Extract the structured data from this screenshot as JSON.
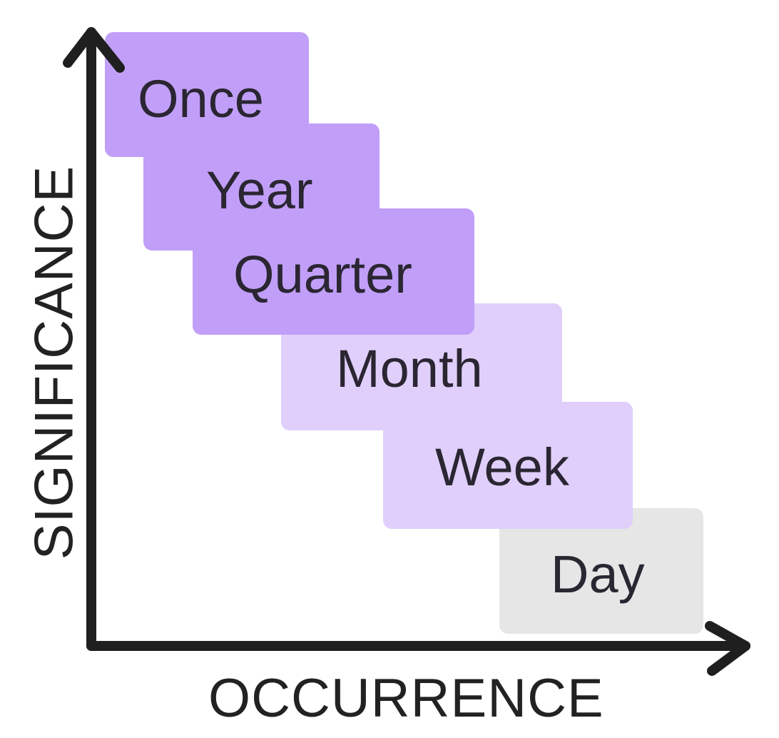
{
  "levels": [
    {
      "label": "Once",
      "tone": "dark"
    },
    {
      "label": "Year",
      "tone": "dark"
    },
    {
      "label": "Quarter",
      "tone": "dark"
    },
    {
      "label": "Month",
      "tone": "light"
    },
    {
      "label": "Week",
      "tone": "light"
    },
    {
      "label": "Day",
      "tone": "grey"
    }
  ],
  "axes": {
    "x_label": "OCCURRENCE",
    "y_label": "SIGNIFICANCE"
  },
  "colors": {
    "dark": "#c19ff8",
    "light": "#e0cffb",
    "grey": "#e6e6e6",
    "axis": "#1f1f1f",
    "text": "#2a2632"
  }
}
